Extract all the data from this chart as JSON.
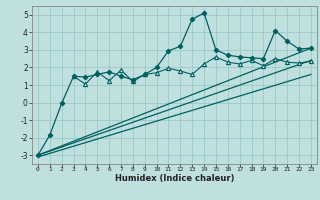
{
  "title": "",
  "xlabel": "Humidex (Indice chaleur)",
  "bg_color": "#c0e0e0",
  "grid_color": "#a0cccc",
  "line_color": "#006060",
  "xlim": [
    -0.5,
    23.5
  ],
  "ylim": [
    -3.5,
    5.5
  ],
  "xticks": [
    0,
    1,
    2,
    3,
    4,
    5,
    6,
    7,
    8,
    9,
    10,
    11,
    12,
    13,
    14,
    15,
    16,
    17,
    18,
    19,
    20,
    21,
    22,
    23
  ],
  "yticks": [
    -3,
    -2,
    -1,
    0,
    1,
    2,
    3,
    4,
    5
  ],
  "main_x": [
    0,
    1,
    2,
    3,
    4,
    5,
    6,
    7,
    8,
    9,
    10,
    11,
    12,
    13,
    14,
    15,
    16,
    17,
    18,
    19,
    20,
    21,
    22,
    23
  ],
  "main_y": [
    -3.0,
    -1.85,
    -0.05,
    1.5,
    1.45,
    1.6,
    1.75,
    1.5,
    1.3,
    1.6,
    2.0,
    2.95,
    3.2,
    4.75,
    5.1,
    3.0,
    2.7,
    2.6,
    2.55,
    2.5,
    4.1,
    3.5,
    3.05,
    3.1
  ],
  "zigzag_x": [
    3,
    4,
    5,
    6,
    7,
    8,
    9,
    10,
    11,
    12,
    13,
    14,
    15,
    16,
    17,
    18,
    19,
    20,
    21,
    22,
    23
  ],
  "zigzag_y": [
    1.5,
    1.05,
    1.75,
    1.25,
    1.85,
    1.2,
    1.6,
    1.7,
    1.95,
    1.8,
    1.6,
    2.2,
    2.6,
    2.3,
    2.2,
    2.4,
    2.1,
    2.5,
    2.3,
    2.25,
    2.35
  ],
  "line1_x": [
    0,
    23
  ],
  "line1_y": [
    -3.0,
    3.1
  ],
  "line2_x": [
    0,
    23
  ],
  "line2_y": [
    -3.0,
    2.4
  ],
  "line3_x": [
    0,
    23
  ],
  "line3_y": [
    -3.1,
    1.6
  ]
}
